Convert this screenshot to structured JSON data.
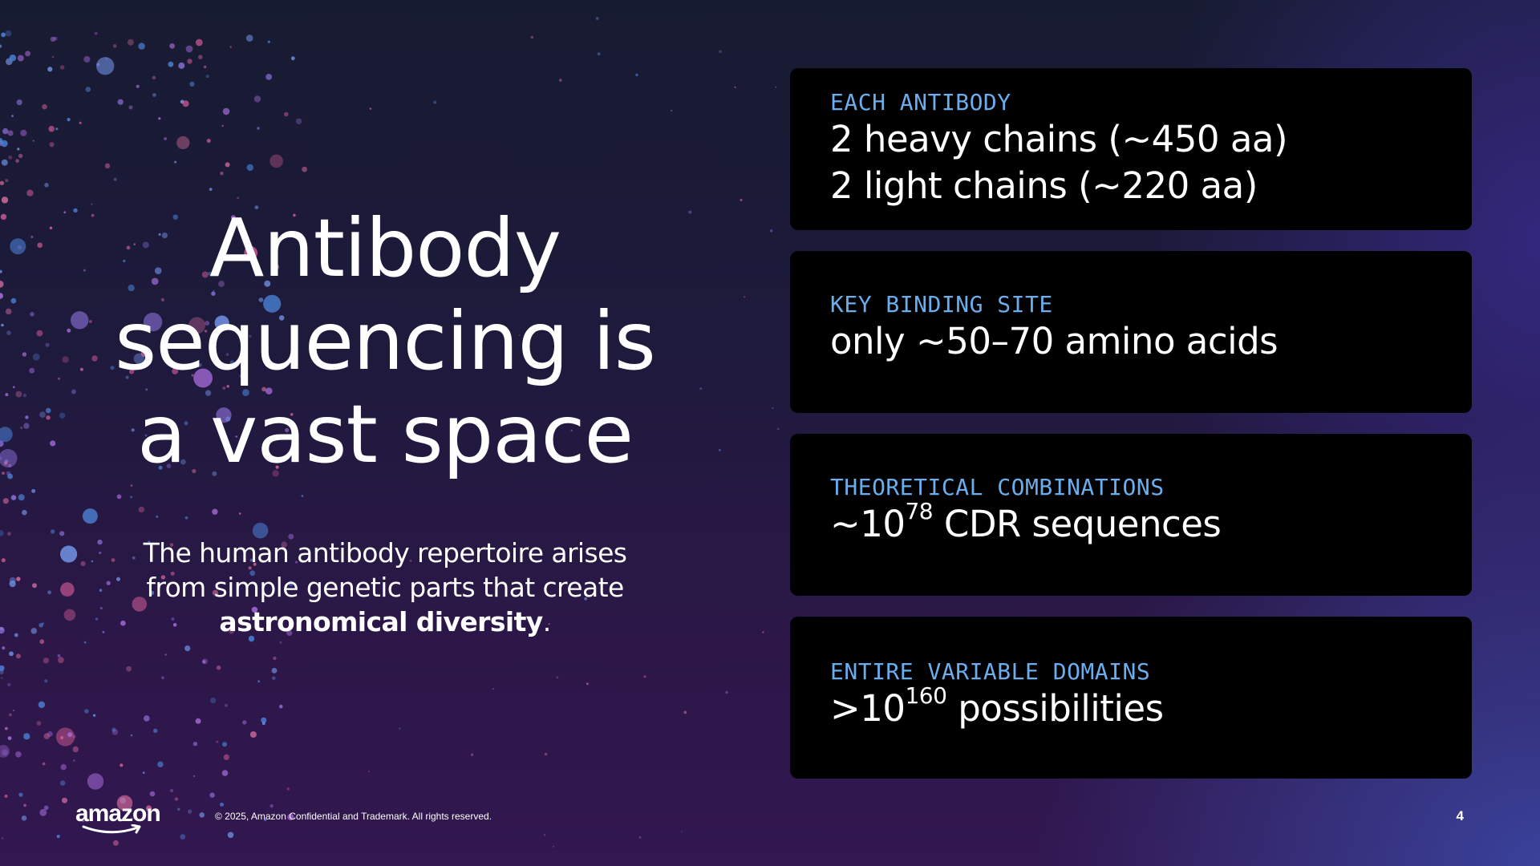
{
  "slide": {
    "title_lines": [
      "Antibody",
      "sequencing is",
      "a vast space"
    ],
    "subtitle_before": "The human antibody repertoire arises from simple genetic parts that create ",
    "subtitle_bold": "astronomical diversity",
    "subtitle_after": "."
  },
  "cards": [
    {
      "label": "EACH ANTIBODY",
      "lines": [
        "2 heavy chains (~450 aa)",
        "2 light chains (~220 aa)"
      ]
    },
    {
      "label": "KEY BINDING SITE",
      "lines": [
        "only ~50–70 amino acids"
      ]
    },
    {
      "label": "THEORETICAL COMBINATIONS",
      "prefix": "~10",
      "sup": "78",
      "suffix": " CDR sequences"
    },
    {
      "label": "ENTIRE VARIABLE DOMAINS",
      "prefix": ">10",
      "sup": "160",
      "suffix": " possibilities"
    }
  ],
  "footer": {
    "logo": "amazon",
    "copyright": "© 2025, Amazon Confidential and Trademark. All rights reserved.",
    "page_number": "4"
  },
  "colors": {
    "card_label": "#6aaeee",
    "card_background": "#000000",
    "text": "#ffffff",
    "dot_palette": [
      "#8c6fd8",
      "#6f8fe0",
      "#c2568e",
      "#4a7fd4",
      "#a469d6",
      "#d06a9a"
    ]
  },
  "icons": [
    "amazon-smile-logo"
  ]
}
